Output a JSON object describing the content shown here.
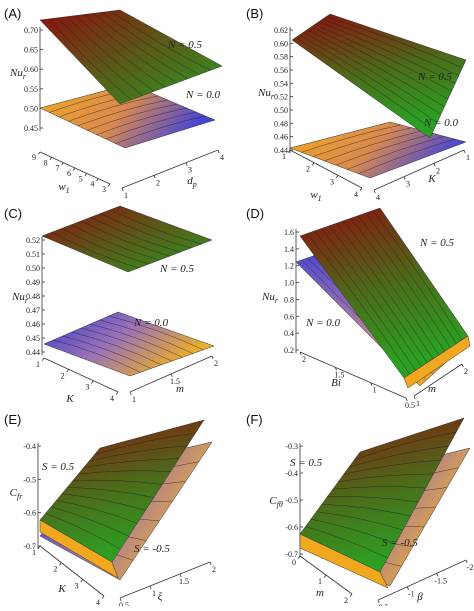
{
  "chart_data": [
    {
      "panel": "(A)",
      "type": "surface3d",
      "x": {
        "label": "w1",
        "ticks": [
          "3",
          "4",
          "5",
          "6",
          "7",
          "8",
          "9"
        ]
      },
      "y": {
        "label": "dp",
        "ticks": [
          "1",
          "2",
          "3",
          "4"
        ]
      },
      "z": {
        "label": "Nur",
        "ticks": [
          "0.45",
          "0.50",
          "0.55",
          "0.60",
          "0.65",
          "0.70"
        ],
        "range": [
          0.43,
          0.71
        ]
      },
      "series": [
        {
          "name": "N = 0.5",
          "z_range": [
            0.54,
            0.7
          ],
          "colors": [
            "#9b1010",
            "#2c8a22"
          ]
        },
        {
          "name": "N = 0.0",
          "z_range": [
            0.44,
            0.48
          ],
          "colors": [
            "#f2a81e",
            "#3a3acb"
          ]
        }
      ]
    },
    {
      "panel": "(B)",
      "type": "surface3d",
      "x": {
        "label": "w1",
        "ticks": [
          "1",
          "2",
          "3",
          "4"
        ]
      },
      "y": {
        "label": "K",
        "ticks": [
          "1",
          "2",
          "3",
          "4"
        ]
      },
      "z": {
        "label": "Nur",
        "ticks": [
          "0.44",
          "0.46",
          "0.48",
          "0.50",
          "0.52",
          "0.54",
          "0.56",
          "0.58",
          "0.60",
          "0.62"
        ],
        "range": [
          0.43,
          0.63
        ]
      },
      "series": [
        {
          "name": "N = 0.5",
          "z_range": [
            0.5,
            0.63
          ],
          "colors": [
            "#9b1010",
            "#2c8a22"
          ]
        },
        {
          "name": "N = 0.0",
          "z_range": [
            0.44,
            0.46
          ],
          "colors": [
            "#f2a81e",
            "#3a3acb"
          ]
        }
      ]
    },
    {
      "panel": "(C)",
      "type": "surface3d",
      "x": {
        "label": "K",
        "ticks": [
          "1",
          "2",
          "3",
          "4"
        ]
      },
      "y": {
        "label": "m",
        "ticks": [
          "1",
          "1.5",
          "2"
        ]
      },
      "z": {
        "label": "Nur",
        "ticks": [
          "0.44",
          "0.45",
          "0.46",
          "0.47",
          "0.48",
          "0.49",
          "0.50",
          "0.51",
          "0.52"
        ],
        "range": [
          0.44,
          0.525
        ]
      },
      "series": [
        {
          "name": "N = 0.5",
          "z_range": [
            0.5,
            0.52
          ],
          "colors": [
            "#9b1010",
            "#2c8a22"
          ]
        },
        {
          "name": "N = 0.0",
          "z_range": [
            0.44,
            0.46
          ],
          "colors": [
            "#3a3acb",
            "#f2a81e"
          ]
        }
      ]
    },
    {
      "panel": "(D)",
      "type": "surface3d",
      "x": {
        "label": "Bi",
        "ticks": [
          "0.5",
          "1",
          "1.5",
          "2"
        ]
      },
      "y": {
        "label": "m",
        "ticks": [
          "1",
          "2"
        ]
      },
      "z": {
        "label": "Nur",
        "ticks": [
          "0.2",
          "0.4",
          "0.6",
          "0.8",
          "1.0",
          "1.2",
          "1.4",
          "1.6"
        ],
        "range": [
          0.1,
          1.65
        ]
      },
      "series": [
        {
          "name": "N = 0.5",
          "z_range": [
            0.3,
            1.6
          ],
          "colors": [
            "#9b1010",
            "#2c8a22"
          ]
        },
        {
          "name": "N = 0.0",
          "z_range": [
            0.2,
            1.3
          ],
          "colors": [
            "#3a3acb",
            "#f2a81e"
          ]
        }
      ]
    },
    {
      "panel": "(E)",
      "type": "surface3d",
      "x": {
        "label": "K",
        "ticks": [
          "1",
          "2",
          "3",
          "4"
        ]
      },
      "y": {
        "label": "ξ",
        "ticks": [
          "0.5",
          "1",
          "1.5",
          "2"
        ]
      },
      "z": {
        "label": "Cfr",
        "ticks": [
          "-0.4",
          "-0.5",
          "-0.6",
          "-0.7"
        ],
        "range": [
          -0.75,
          -0.35
        ]
      },
      "series": [
        {
          "name": "S = 0.5",
          "z_range": [
            -0.68,
            -0.36
          ],
          "colors": [
            "#9b1010",
            "#2c8a22"
          ]
        },
        {
          "name": "S = -0.5",
          "z_range": [
            -0.72,
            -0.38
          ],
          "colors": [
            "#3a3acb",
            "#f2a81e"
          ]
        }
      ]
    },
    {
      "panel": "(F)",
      "type": "surface3d",
      "x": {
        "label": "m",
        "ticks": [
          "0",
          "1",
          "2"
        ]
      },
      "y": {
        "label": "β",
        "ticks": [
          "-0.5",
          "-1",
          "-1.5",
          "-2"
        ]
      },
      "z": {
        "label": "Cfθ",
        "ticks": [
          "-0.3",
          "-0.4",
          "-0.5",
          "-0.6",
          "-0.7"
        ],
        "range": [
          -0.75,
          -0.27
        ]
      },
      "series": [
        {
          "name": "S = 0.5",
          "z_range": [
            -0.7,
            -0.28
          ],
          "colors": [
            "#9b1010",
            "#2c8a22"
          ]
        },
        {
          "name": "S = -0.5",
          "z_range": [
            -0.74,
            -0.32
          ],
          "colors": [
            "#3a3acb",
            "#f2a81e"
          ]
        }
      ]
    }
  ],
  "colors": {
    "red": "#9b1010",
    "green": "#2c8a22",
    "orange": "#f2a81e",
    "blue": "#3a3acb"
  }
}
